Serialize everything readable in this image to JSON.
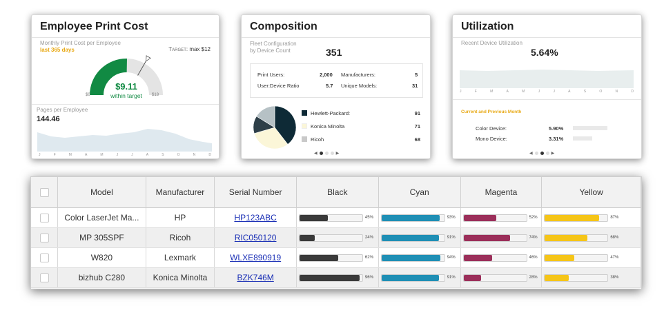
{
  "employee_cost": {
    "title": "Employee Print Cost",
    "subtitle": "Monthly Print Cost per Employee",
    "period": "last 365 days",
    "target_label": "Target:",
    "target_value": "max $12",
    "gauge_value": "$9.11",
    "gauge_status": "within target",
    "gauge_min": "$0",
    "gauge_max": "$18",
    "gauge_fraction": 0.506,
    "gauge_target_fraction": 0.667,
    "pages_label": "Pages per Employee",
    "pages_value": "144.46",
    "months": [
      "J",
      "F",
      "M",
      "A",
      "M",
      "J",
      "J",
      "A",
      "S",
      "O",
      "N",
      "D"
    ]
  },
  "composition": {
    "title": "Composition",
    "subtitle_line1": "Fleet Configuration",
    "subtitle_line2": "by Device Count",
    "count": "351",
    "stats": {
      "print_users_label": "Print Users:",
      "print_users_value": "2,000",
      "manufacturers_label": "Manufacturers:",
      "manufacturers_value": "5",
      "ratio_label": "User:Device Ratio",
      "ratio_value": "5.7",
      "unique_models_label": "Unique Models:",
      "unique_models_value": "31"
    },
    "legend": [
      {
        "name": "Hewlett-Packard:",
        "value": "91",
        "color": "#0e2a36"
      },
      {
        "name": "Konica Minolta",
        "value": "71",
        "color": "#fbf6d8"
      },
      {
        "name": "Ricoh",
        "value": "68",
        "color": "#c9c9c9"
      }
    ],
    "pie_colors": [
      "#0e2a36",
      "#fbf6d8",
      "#2e3f48",
      "#b6c1c5"
    ]
  },
  "utilization": {
    "title": "Utilization",
    "subtitle": "Recent Device Utilization",
    "value": "5.64%",
    "months": [
      "J",
      "F",
      "M",
      "A",
      "M",
      "J",
      "J",
      "A",
      "S",
      "O",
      "N",
      "D"
    ],
    "comparison_label": "Current and Previous Month",
    "rows": [
      {
        "label": "Color Device:",
        "value": "5.90%"
      },
      {
        "label": "Mono Device:",
        "value": "3.31%"
      }
    ]
  },
  "table": {
    "headers": {
      "model": "Model",
      "manufacturer": "Manufacturer",
      "serial": "Serial Number",
      "black": "Black",
      "cyan": "Cyan",
      "magenta": "Magenta",
      "yellow": "Yellow"
    },
    "colors": {
      "black": "#3a3a3a",
      "cyan": "#1f8fb5",
      "magenta": "#9b2f5a",
      "yellow": "#f5c518"
    },
    "rows": [
      {
        "model": "Color LaserJet Ma...",
        "manufacturer": "HP",
        "serial": "HP123ABC",
        "black": 45,
        "cyan": 93,
        "magenta": 52,
        "yellow": 87
      },
      {
        "model": "MP 305SPF",
        "manufacturer": "Ricoh",
        "serial": "RIC050120",
        "black": 24,
        "cyan": 91,
        "magenta": 74,
        "yellow": 68
      },
      {
        "model": "W820",
        "manufacturer": "Lexmark",
        "serial": "WLXE890919",
        "black": 62,
        "cyan": 94,
        "magenta": 46,
        "yellow": 47
      },
      {
        "model": "bizhub C280",
        "manufacturer": "Konica Minolta",
        "serial": "BZK746M",
        "black": 96,
        "cyan": 91,
        "magenta": 28,
        "yellow": 38
      }
    ]
  }
}
